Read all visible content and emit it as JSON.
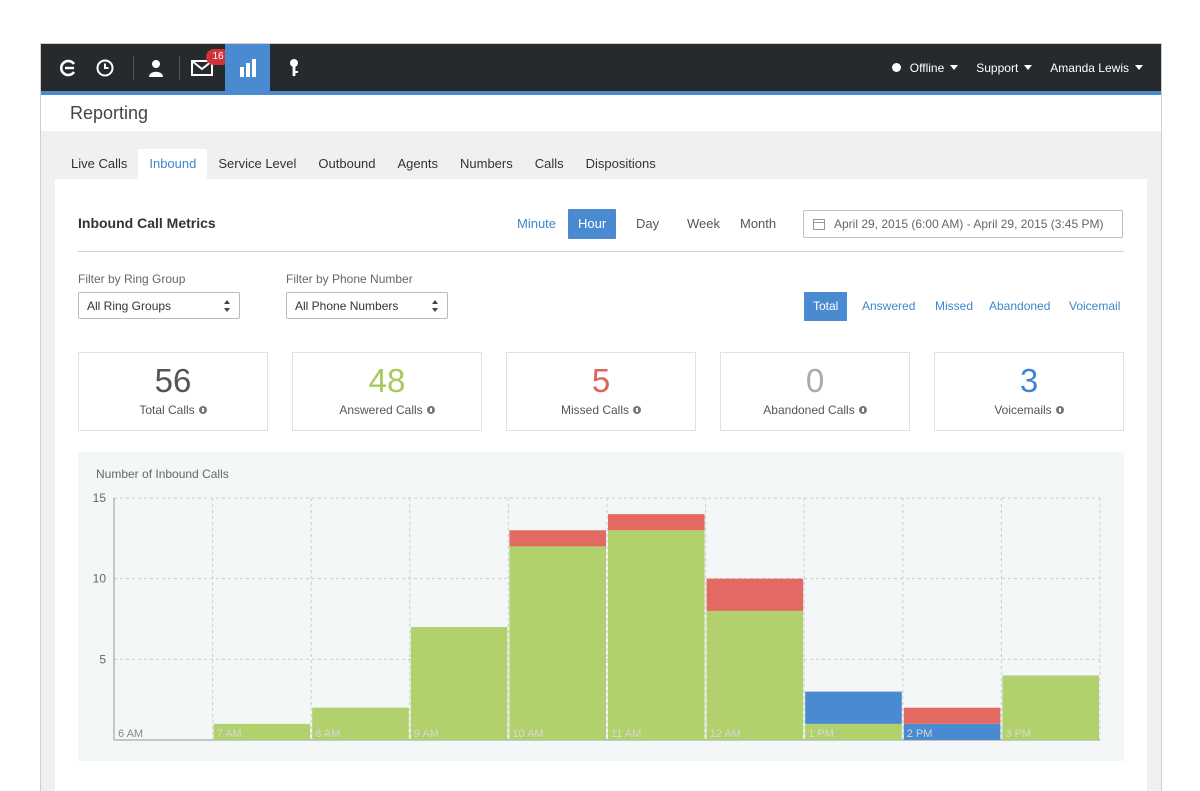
{
  "topbar": {
    "badge_count": "16",
    "status_label": "Offline",
    "support_label": "Support",
    "user_label": "Amanda Lewis",
    "accent": "#4a8ad0"
  },
  "page": {
    "title": "Reporting"
  },
  "tabs": [
    "Live Calls",
    "Inbound",
    "Service Level",
    "Outbound",
    "Agents",
    "Numbers",
    "Calls",
    "Dispositions"
  ],
  "metrics": {
    "title": "Inbound Call Metrics",
    "granularity": {
      "minute": "Minute",
      "hour": "Hour",
      "day": "Day",
      "week": "Week",
      "month": "Month",
      "selected": "Hour"
    },
    "date_range": "April 29, 2015 (6:00 AM) - April 29, 2015 (3:45 PM)"
  },
  "filters": {
    "ring_group_label": "Filter by Ring Group",
    "ring_group_value": "All Ring Groups",
    "phone_label": "Filter by Phone Number",
    "phone_value": "All Phone Numbers",
    "buttons": {
      "total": "Total",
      "answered": "Answered",
      "missed": "Missed",
      "abandoned": "Abandoned",
      "voicemail": "Voicemail"
    },
    "selected": "Total"
  },
  "stats": [
    {
      "value": "56",
      "label": "Total Calls",
      "color": "#555555"
    },
    {
      "value": "48",
      "label": "Answered Calls",
      "color": "#a8c95b"
    },
    {
      "value": "5",
      "label": "Missed Calls",
      "color": "#e0625a"
    },
    {
      "value": "0",
      "label": "Abandoned Calls",
      "color": "#aaaaaa"
    },
    {
      "value": "3",
      "label": "Voicemails",
      "color": "#3f86cc"
    }
  ],
  "chart_data": {
    "type": "bar",
    "stacked": true,
    "title": "Number of Inbound Calls",
    "categories": [
      "6 AM",
      "7 AM",
      "8 AM",
      "9 AM",
      "10 AM",
      "11 AM",
      "12 AM",
      "1 PM",
      "2 PM",
      "3 PM"
    ],
    "ylim": [
      0,
      15
    ],
    "yticks": [
      "5",
      "10",
      "15"
    ],
    "grid": true,
    "series": [
      {
        "values": [
          0,
          1,
          2,
          7,
          12,
          13,
          8,
          1,
          0,
          4
        ],
        "color": "#b0d16c"
      },
      {
        "values": [
          0,
          0,
          0,
          0,
          0,
          0,
          0,
          2,
          1,
          0
        ],
        "color": "#4a8ad0"
      },
      {
        "values": [
          0,
          0,
          0,
          0,
          1,
          1,
          2,
          0,
          1,
          0
        ],
        "color": "#e26a63"
      }
    ]
  }
}
